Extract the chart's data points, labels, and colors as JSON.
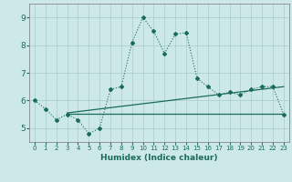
{
  "xlabel": "Humidex (Indice chaleur)",
  "bg_color": "#cce8e8",
  "line_color": "#1a6b5a",
  "xlim": [
    -0.5,
    23.5
  ],
  "ylim": [
    4.5,
    9.5
  ],
  "yticks": [
    5,
    6,
    7,
    8,
    9
  ],
  "xticks": [
    0,
    1,
    2,
    3,
    4,
    5,
    6,
    7,
    8,
    9,
    10,
    11,
    12,
    13,
    14,
    15,
    16,
    17,
    18,
    19,
    20,
    21,
    22,
    23
  ],
  "curve1_x": [
    0,
    1,
    2,
    3,
    4,
    5,
    6,
    7,
    8,
    9,
    10,
    11,
    12,
    13,
    14,
    15,
    16,
    17,
    18,
    19,
    20,
    21,
    22,
    23
  ],
  "curve1_y": [
    6.0,
    5.7,
    5.3,
    5.5,
    5.3,
    4.8,
    5.0,
    6.4,
    6.5,
    8.1,
    9.0,
    8.5,
    7.7,
    8.4,
    8.45,
    6.8,
    6.5,
    6.2,
    6.3,
    6.2,
    6.4,
    6.5,
    6.5,
    5.5
  ],
  "trend1_x": [
    3,
    23
  ],
  "trend1_y": [
    5.55,
    6.5
  ],
  "trend2_x": [
    3,
    23
  ],
  "trend2_y": [
    5.52,
    5.52
  ],
  "grid_color": "#aacccc",
  "font_color": "#1a6b5a",
  "grid_alpha": 0.8
}
